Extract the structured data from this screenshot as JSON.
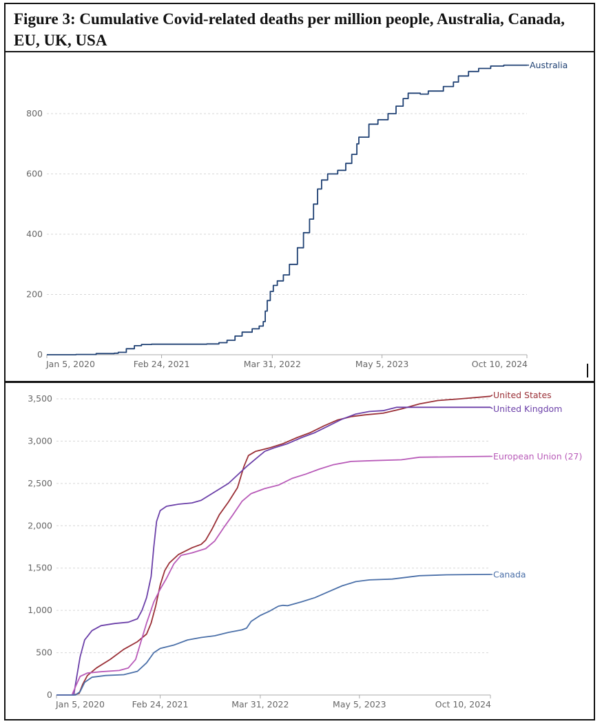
{
  "figure": {
    "title": "Figure 3: Cumulative Covid-related deaths per million people, Australia, Canada, EU, UK, USA"
  },
  "chart_data": [
    {
      "type": "line",
      "title": "",
      "xlabel": "",
      "ylabel": "",
      "x_unit": "decimal year",
      "xlim": [
        2020.01,
        2024.78
      ],
      "ylim": [
        0,
        960
      ],
      "grid": true,
      "legend": "inline-right",
      "x_ticks": [
        {
          "value": 2020.01,
          "label": "Jan 5, 2020"
        },
        {
          "value": 2021.15,
          "label": "Feb 24, 2021"
        },
        {
          "value": 2022.25,
          "label": "Mar 31, 2022"
        },
        {
          "value": 2023.34,
          "label": "May 5, 2023"
        },
        {
          "value": 2024.78,
          "label": "Oct 10, 2024"
        }
      ],
      "y_ticks": [
        {
          "value": 0,
          "label": "0"
        },
        {
          "value": 200,
          "label": "200"
        },
        {
          "value": 400,
          "label": "400"
        },
        {
          "value": 600,
          "label": "600"
        },
        {
          "value": 800,
          "label": "800"
        }
      ],
      "series": [
        {
          "name": "Australia",
          "color": "#1d3f72",
          "step": true,
          "points": [
            [
              2020.01,
              0
            ],
            [
              2020.3,
              1
            ],
            [
              2020.5,
              4
            ],
            [
              2020.68,
              5
            ],
            [
              2020.72,
              8
            ],
            [
              2020.8,
              20
            ],
            [
              2020.88,
              30
            ],
            [
              2020.95,
              34
            ],
            [
              2021.05,
              35
            ],
            [
              2021.3,
              35
            ],
            [
              2021.6,
              36
            ],
            [
              2021.72,
              40
            ],
            [
              2021.8,
              48
            ],
            [
              2021.88,
              62
            ],
            [
              2021.95,
              75
            ],
            [
              2022.05,
              86
            ],
            [
              2022.12,
              95
            ],
            [
              2022.16,
              110
            ],
            [
              2022.18,
              145
            ],
            [
              2022.2,
              180
            ],
            [
              2022.23,
              210
            ],
            [
              2022.26,
              230
            ],
            [
              2022.3,
              245
            ],
            [
              2022.36,
              265
            ],
            [
              2022.42,
              300
            ],
            [
              2022.5,
              355
            ],
            [
              2022.56,
              405
            ],
            [
              2022.62,
              450
            ],
            [
              2022.66,
              500
            ],
            [
              2022.7,
              550
            ],
            [
              2022.74,
              580
            ],
            [
              2022.8,
              600
            ],
            [
              2022.9,
              612
            ],
            [
              2022.98,
              635
            ],
            [
              2023.04,
              665
            ],
            [
              2023.09,
              700
            ],
            [
              2023.11,
              722
            ],
            [
              2023.2,
              722
            ],
            [
              2023.21,
              765
            ],
            [
              2023.3,
              780
            ],
            [
              2023.4,
              800
            ],
            [
              2023.48,
              825
            ],
            [
              2023.55,
              850
            ],
            [
              2023.6,
              868
            ],
            [
              2023.68,
              868
            ],
            [
              2023.72,
              865
            ],
            [
              2023.8,
              875
            ],
            [
              2023.95,
              890
            ],
            [
              2024.05,
              905
            ],
            [
              2024.1,
              925
            ],
            [
              2024.2,
              940
            ],
            [
              2024.3,
              950
            ],
            [
              2024.42,
              958
            ],
            [
              2024.55,
              961
            ],
            [
              2024.78,
              961
            ]
          ]
        }
      ]
    },
    {
      "type": "line",
      "title": "",
      "xlabel": "",
      "ylabel": "",
      "x_unit": "decimal year",
      "xlim": [
        2020.01,
        2024.78
      ],
      "ylim": [
        0,
        3500
      ],
      "grid": true,
      "legend": "inline-right",
      "x_ticks": [
        {
          "value": 2020.01,
          "label": "Jan 5, 2020"
        },
        {
          "value": 2021.15,
          "label": "Feb 24, 2021"
        },
        {
          "value": 2022.25,
          "label": "Mar 31, 2022"
        },
        {
          "value": 2023.34,
          "label": "May 5, 2023"
        },
        {
          "value": 2024.78,
          "label": "Oct 10, 2024"
        }
      ],
      "y_ticks": [
        {
          "value": 0,
          "label": "0"
        },
        {
          "value": 500,
          "label": "500"
        },
        {
          "value": 1000,
          "label": "1,000"
        },
        {
          "value": 1500,
          "label": "1,500"
        },
        {
          "value": 2000,
          "label": "2,000"
        },
        {
          "value": 2500,
          "label": "2,500"
        },
        {
          "value": 3000,
          "label": "3,000"
        },
        {
          "value": 3500,
          "label": "3,500"
        }
      ],
      "series": [
        {
          "name": "United States",
          "color": "#9a2f36",
          "points": [
            [
              2020.01,
              0
            ],
            [
              2020.2,
              0
            ],
            [
              2020.26,
              20
            ],
            [
              2020.3,
              130
            ],
            [
              2020.35,
              230
            ],
            [
              2020.45,
              320
            ],
            [
              2020.6,
              420
            ],
            [
              2020.75,
              540
            ],
            [
              2020.9,
              630
            ],
            [
              2021.0,
              720
            ],
            [
              2021.05,
              850
            ],
            [
              2021.1,
              1050
            ],
            [
              2021.15,
              1300
            ],
            [
              2021.2,
              1470
            ],
            [
              2021.25,
              1560
            ],
            [
              2021.35,
              1660
            ],
            [
              2021.5,
              1740
            ],
            [
              2021.6,
              1780
            ],
            [
              2021.65,
              1830
            ],
            [
              2021.72,
              1960
            ],
            [
              2021.8,
              2130
            ],
            [
              2021.9,
              2280
            ],
            [
              2022.0,
              2450
            ],
            [
              2022.07,
              2700
            ],
            [
              2022.12,
              2830
            ],
            [
              2022.2,
              2880
            ],
            [
              2022.35,
              2920
            ],
            [
              2022.5,
              2970
            ],
            [
              2022.65,
              3040
            ],
            [
              2022.8,
              3100
            ],
            [
              2022.95,
              3180
            ],
            [
              2023.1,
              3250
            ],
            [
              2023.25,
              3290
            ],
            [
              2023.4,
              3310
            ],
            [
              2023.6,
              3330
            ],
            [
              2023.8,
              3380
            ],
            [
              2024.0,
              3440
            ],
            [
              2024.2,
              3480
            ],
            [
              2024.45,
              3500
            ],
            [
              2024.78,
              3530
            ]
          ]
        },
        {
          "name": "United Kingdom",
          "color": "#6b3fa8",
          "points": [
            [
              2020.01,
              0
            ],
            [
              2020.2,
              0
            ],
            [
              2020.23,
              200
            ],
            [
              2020.27,
              450
            ],
            [
              2020.32,
              650
            ],
            [
              2020.4,
              760
            ],
            [
              2020.5,
              820
            ],
            [
              2020.65,
              845
            ],
            [
              2020.8,
              860
            ],
            [
              2020.9,
              900
            ],
            [
              2020.95,
              1000
            ],
            [
              2021.0,
              1150
            ],
            [
              2021.05,
              1400
            ],
            [
              2021.08,
              1750
            ],
            [
              2021.11,
              2050
            ],
            [
              2021.15,
              2180
            ],
            [
              2021.22,
              2230
            ],
            [
              2021.35,
              2255
            ],
            [
              2021.5,
              2270
            ],
            [
              2021.6,
              2300
            ],
            [
              2021.75,
              2400
            ],
            [
              2021.9,
              2500
            ],
            [
              2022.0,
              2600
            ],
            [
              2022.1,
              2700
            ],
            [
              2022.2,
              2790
            ],
            [
              2022.3,
              2880
            ],
            [
              2022.4,
              2920
            ],
            [
              2022.55,
              2970
            ],
            [
              2022.7,
              3040
            ],
            [
              2022.85,
              3100
            ],
            [
              2023.0,
              3180
            ],
            [
              2023.15,
              3260
            ],
            [
              2023.3,
              3320
            ],
            [
              2023.45,
              3350
            ],
            [
              2023.6,
              3360
            ],
            [
              2023.75,
              3400
            ],
            [
              2023.9,
              3400
            ],
            [
              2024.78,
              3400
            ]
          ]
        },
        {
          "name": "European Union (27)",
          "color": "#b85ab8",
          "points": [
            [
              2020.01,
              0
            ],
            [
              2020.18,
              0
            ],
            [
              2020.22,
              100
            ],
            [
              2020.27,
              220
            ],
            [
              2020.35,
              260
            ],
            [
              2020.5,
              275
            ],
            [
              2020.7,
              290
            ],
            [
              2020.8,
              320
            ],
            [
              2020.88,
              420
            ],
            [
              2020.93,
              600
            ],
            [
              2021.0,
              850
            ],
            [
              2021.08,
              1100
            ],
            [
              2021.15,
              1250
            ],
            [
              2021.22,
              1380
            ],
            [
              2021.3,
              1550
            ],
            [
              2021.38,
              1650
            ],
            [
              2021.5,
              1680
            ],
            [
              2021.65,
              1730
            ],
            [
              2021.75,
              1820
            ],
            [
              2021.85,
              1980
            ],
            [
              2021.95,
              2130
            ],
            [
              2022.05,
              2290
            ],
            [
              2022.15,
              2380
            ],
            [
              2022.3,
              2440
            ],
            [
              2022.45,
              2480
            ],
            [
              2022.6,
              2560
            ],
            [
              2022.75,
              2610
            ],
            [
              2022.9,
              2670
            ],
            [
              2023.05,
              2720
            ],
            [
              2023.25,
              2760
            ],
            [
              2023.5,
              2770
            ],
            [
              2023.8,
              2780
            ],
            [
              2024.0,
              2810
            ],
            [
              2024.78,
              2820
            ]
          ]
        },
        {
          "name": "Canada",
          "color": "#4a6fa8",
          "points": [
            [
              2020.01,
              0
            ],
            [
              2020.22,
              0
            ],
            [
              2020.27,
              40
            ],
            [
              2020.32,
              150
            ],
            [
              2020.4,
              210
            ],
            [
              2020.55,
              230
            ],
            [
              2020.75,
              240
            ],
            [
              2020.9,
              280
            ],
            [
              2021.0,
              380
            ],
            [
              2021.08,
              500
            ],
            [
              2021.15,
              550
            ],
            [
              2021.3,
              590
            ],
            [
              2021.45,
              650
            ],
            [
              2021.6,
              680
            ],
            [
              2021.75,
              700
            ],
            [
              2021.9,
              740
            ],
            [
              2022.05,
              770
            ],
            [
              2022.1,
              790
            ],
            [
              2022.15,
              870
            ],
            [
              2022.25,
              940
            ],
            [
              2022.35,
              990
            ],
            [
              2022.45,
              1050
            ],
            [
              2022.5,
              1060
            ],
            [
              2022.55,
              1055
            ],
            [
              2022.7,
              1100
            ],
            [
              2022.85,
              1150
            ],
            [
              2023.0,
              1220
            ],
            [
              2023.15,
              1290
            ],
            [
              2023.3,
              1340
            ],
            [
              2023.45,
              1360
            ],
            [
              2023.7,
              1370
            ],
            [
              2024.0,
              1410
            ],
            [
              2024.3,
              1420
            ],
            [
              2024.78,
              1425
            ]
          ]
        }
      ]
    }
  ]
}
